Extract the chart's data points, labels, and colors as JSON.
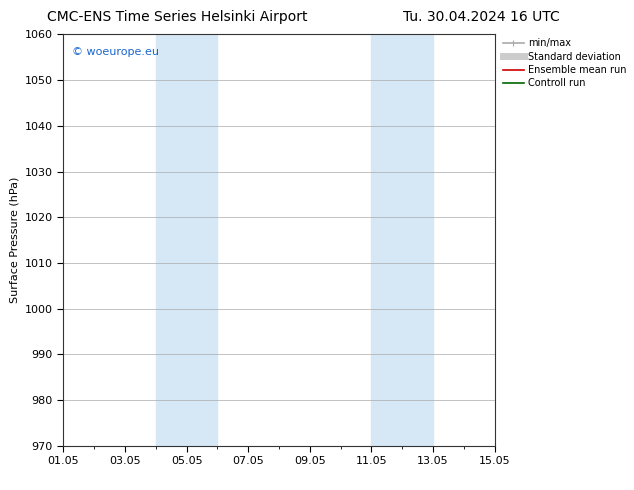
{
  "title_left": "CMC-ENS Time Series Helsinki Airport",
  "title_right": "Tu. 30.04.2024 16 UTC",
  "ylabel": "Surface Pressure (hPa)",
  "ylim": [
    970,
    1060
  ],
  "yticks": [
    970,
    980,
    990,
    1000,
    1010,
    1020,
    1030,
    1040,
    1050,
    1060
  ],
  "xlim": [
    0,
    14
  ],
  "xtick_labels": [
    "01.05",
    "03.05",
    "05.05",
    "07.05",
    "09.05",
    "11.05",
    "13.05",
    "15.05"
  ],
  "xtick_positions": [
    0,
    2,
    4,
    6,
    8,
    10,
    12,
    14
  ],
  "shaded_bands": [
    {
      "x_start": 3,
      "x_end": 5
    },
    {
      "x_start": 10,
      "x_end": 12
    }
  ],
  "shaded_color": "#d6e8f5",
  "legend_items": [
    {
      "label": "min/max",
      "color": "#aaaaaa",
      "lw": 1.2,
      "type": "line_caps"
    },
    {
      "label": "Standard deviation",
      "color": "#cccccc",
      "lw": 5,
      "type": "line"
    },
    {
      "label": "Ensemble mean run",
      "color": "#cc0000",
      "lw": 1.2,
      "type": "line"
    },
    {
      "label": "Controll run",
      "color": "#006600",
      "lw": 1.2,
      "type": "line"
    }
  ],
  "watermark": "© woeurope.eu",
  "watermark_color": "#1a66cc",
  "background_color": "#ffffff",
  "plot_bg_color": "#ffffff",
  "grid_color": "#aaaaaa",
  "spine_color": "#333333",
  "title_fontsize": 10,
  "label_fontsize": 8,
  "tick_fontsize": 8
}
